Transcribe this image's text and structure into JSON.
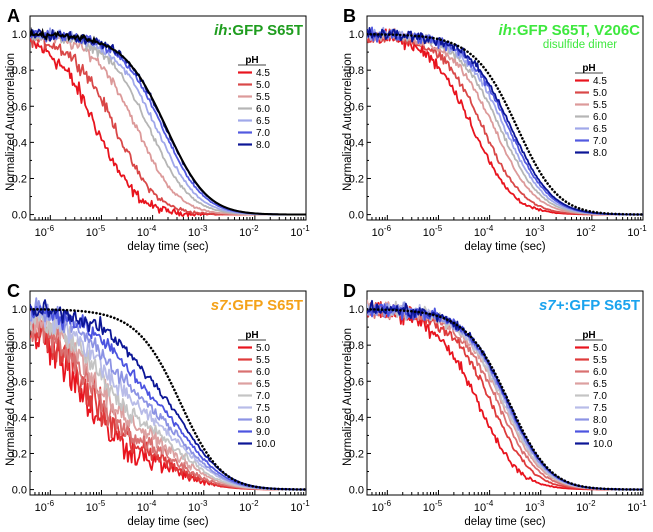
{
  "chart_data": [
    {
      "panel_label": "A",
      "type": "line",
      "title_italic": "ih",
      "title_rest": ":GFP S65T",
      "subtitle": "",
      "title_color": "#1f9d1f",
      "subtitle_color": "#22bb22",
      "xlabel": "delay time (sec)",
      "ylabel": "Normalized Autocorrelation",
      "x_scale": "log",
      "xlim": [
        4e-07,
        0.1
      ],
      "ylim": [
        -0.03,
        1.1
      ],
      "x_ticks": [
        "10-6",
        "10-5",
        "10-4",
        "10-3",
        "10-2",
        "10-1"
      ],
      "y_ticks": [
        "0.0",
        "0.2",
        "0.4",
        "0.6",
        "0.8",
        "1.0"
      ],
      "legend_title": "pH",
      "legend_position": "right",
      "reference_curve": {
        "style": "solid black",
        "half_decay_time": 0.000245
      },
      "series": [
        {
          "name": "4.5",
          "color": "#e8141e",
          "half_decay_time": 1.05e-05,
          "noise": 0.045
        },
        {
          "name": "5.0",
          "color": "#d94848",
          "half_decay_time": 2.45e-05,
          "noise": 0.035
        },
        {
          "name": "5.5",
          "color": "#dc9a9a",
          "half_decay_time": 6.4e-05,
          "noise": 0.03
        },
        {
          "name": "6.0",
          "color": "#b5b5b5",
          "half_decay_time": 0.000112,
          "noise": 0.028
        },
        {
          "name": "6.5",
          "color": "#a0a8ea",
          "half_decay_time": 0.000155,
          "noise": 0.028
        },
        {
          "name": "7.0",
          "color": "#5259e0",
          "half_decay_time": 0.000205,
          "noise": 0.025
        },
        {
          "name": "8.0",
          "color": "#0c1696",
          "half_decay_time": 0.00024,
          "noise": 0.025
        }
      ]
    },
    {
      "panel_label": "B",
      "type": "line",
      "title_italic": "ih",
      "title_rest": ":GFP S65T, V206C",
      "subtitle": "disulfide dimer",
      "title_color": "#3ee83e",
      "subtitle_color": "#3ee83e",
      "xlabel": "delay time (sec)",
      "ylabel": "Normalized Autocorrelation",
      "x_scale": "log",
      "xlim": [
        4e-07,
        0.1
      ],
      "ylim": [
        -0.03,
        1.1
      ],
      "x_ticks": [
        "10-6",
        "10-5",
        "10-4",
        "10-3",
        "10-2",
        "10-1"
      ],
      "y_ticks": [
        "0.0",
        "0.2",
        "0.4",
        "0.6",
        "0.8",
        "1.0"
      ],
      "legend_title": "pH",
      "legend_position": "right",
      "reference_curve": {
        "style": "dotted black",
        "half_decay_time": 0.00046
      },
      "series": [
        {
          "name": "4.5",
          "color": "#e8141e",
          "half_decay_time": 6.2e-05,
          "noise": 0.035
        },
        {
          "name": "5.0",
          "color": "#d94848",
          "half_decay_time": 9.8e-05,
          "noise": 0.03
        },
        {
          "name": "5.5",
          "color": "#dc9a9a",
          "half_decay_time": 0.00016,
          "noise": 0.028
        },
        {
          "name": "6.0",
          "color": "#b5b5b5",
          "half_decay_time": 0.00021,
          "noise": 0.028
        },
        {
          "name": "6.5",
          "color": "#a0a8ea",
          "half_decay_time": 0.00026,
          "noise": 0.03
        },
        {
          "name": "7.0",
          "color": "#5259e0",
          "half_decay_time": 0.00031,
          "noise": 0.035
        },
        {
          "name": "8.0",
          "color": "#0c1696",
          "half_decay_time": 0.00035,
          "noise": 0.03
        }
      ]
    },
    {
      "panel_label": "C",
      "type": "line",
      "title_italic": "s7",
      "title_rest": ":GFP S65T",
      "subtitle": "",
      "title_color": "#f4a21a",
      "subtitle_color": "#f4a21a",
      "xlabel": "delay time (sec)",
      "ylabel": "Normalized Autocorrelation",
      "x_scale": "log",
      "xlim": [
        4e-07,
        0.1
      ],
      "ylim": [
        -0.03,
        1.1
      ],
      "x_ticks": [
        "10-6",
        "10-5",
        "10-4",
        "10-3",
        "10-2",
        "10-1"
      ],
      "y_ticks": [
        "0.0",
        "0.2",
        "0.4",
        "0.6",
        "0.8",
        "1.0"
      ],
      "legend_title": "pH",
      "legend_position": "right",
      "reference_curve": {
        "style": "dotted black",
        "half_decay_time": 0.00046
      },
      "series": [
        {
          "name": "5.0",
          "color": "#e8141e",
          "half_decay_time": 4.6e-06,
          "noise": 0.11,
          "plateau": 0.2,
          "plateau_tau": 0.0004
        },
        {
          "name": "5.5",
          "color": "#de3b3b",
          "half_decay_time": 5.5e-06,
          "noise": 0.1,
          "plateau": 0.24,
          "plateau_tau": 0.0004
        },
        {
          "name": "6.0",
          "color": "#d97070",
          "half_decay_time": 6.5e-06,
          "noise": 0.09,
          "plateau": 0.28,
          "plateau_tau": 0.00045
        },
        {
          "name": "6.5",
          "color": "#dca0a0",
          "half_decay_time": 7.8e-06,
          "noise": 0.08,
          "plateau": 0.34,
          "plateau_tau": 0.0005
        },
        {
          "name": "7.0",
          "color": "#c4c4c4",
          "half_decay_time": 9.5e-06,
          "noise": 0.07,
          "plateau": 0.38,
          "plateau_tau": 0.00055
        },
        {
          "name": "7.5",
          "color": "#b8bce8",
          "half_decay_time": 1.2e-05,
          "noise": 0.06,
          "plateau": 0.44,
          "plateau_tau": 0.0006
        },
        {
          "name": "8.0",
          "color": "#8c93e4",
          "half_decay_time": 1.6e-05,
          "noise": 0.055,
          "plateau": 0.5,
          "plateau_tau": 0.0006
        },
        {
          "name": "9.0",
          "color": "#4c54e0",
          "half_decay_time": 2.5e-05,
          "noise": 0.05,
          "plateau": 0.55,
          "plateau_tau": 0.00065
        },
        {
          "name": "10.0",
          "color": "#0c1696",
          "half_decay_time": 4e-05,
          "noise": 0.045,
          "plateau": 0.62,
          "plateau_tau": 0.0007
        }
      ]
    },
    {
      "panel_label": "D",
      "type": "line",
      "title_italic": "s7+",
      "title_rest": ":GFP S65T",
      "subtitle": "",
      "title_color": "#1aa3ee",
      "subtitle_color": "#1aa3ee",
      "xlabel": "delay time (sec)",
      "ylabel": "Normalized Autocorrelation",
      "x_scale": "log",
      "xlim": [
        4e-07,
        0.1
      ],
      "ylim": [
        -0.03,
        1.1
      ],
      "x_ticks": [
        "10-6",
        "10-5",
        "10-4",
        "10-3",
        "10-2",
        "10-1"
      ],
      "y_ticks": [
        "0.0",
        "0.2",
        "0.4",
        "0.6",
        "0.8",
        "1.0"
      ],
      "legend_title": "pH",
      "legend_position": "right",
      "reference_curve": {
        "style": "dotted black",
        "half_decay_time": 0.00032
      },
      "series": [
        {
          "name": "5.0",
          "color": "#e8141e",
          "half_decay_time": 7.8e-05,
          "noise": 0.045
        },
        {
          "name": "5.5",
          "color": "#de3b3b",
          "half_decay_time": 0.00014,
          "noise": 0.04
        },
        {
          "name": "6.0",
          "color": "#d97070",
          "half_decay_time": 0.00019,
          "noise": 0.04
        },
        {
          "name": "6.5",
          "color": "#dca0a0",
          "half_decay_time": 0.00023,
          "noise": 0.035
        },
        {
          "name": "7.0",
          "color": "#c4c4c4",
          "half_decay_time": 0.00025,
          "noise": 0.035
        },
        {
          "name": "7.5",
          "color": "#b8bce8",
          "half_decay_time": 0.00027,
          "noise": 0.035
        },
        {
          "name": "8.0",
          "color": "#8c93e4",
          "half_decay_time": 0.00028,
          "noise": 0.035
        },
        {
          "name": "9.0",
          "color": "#4c54e0",
          "half_decay_time": 0.0003,
          "noise": 0.035
        },
        {
          "name": "10.0",
          "color": "#0c1696",
          "half_decay_time": 0.00031,
          "noise": 0.035
        }
      ]
    }
  ]
}
